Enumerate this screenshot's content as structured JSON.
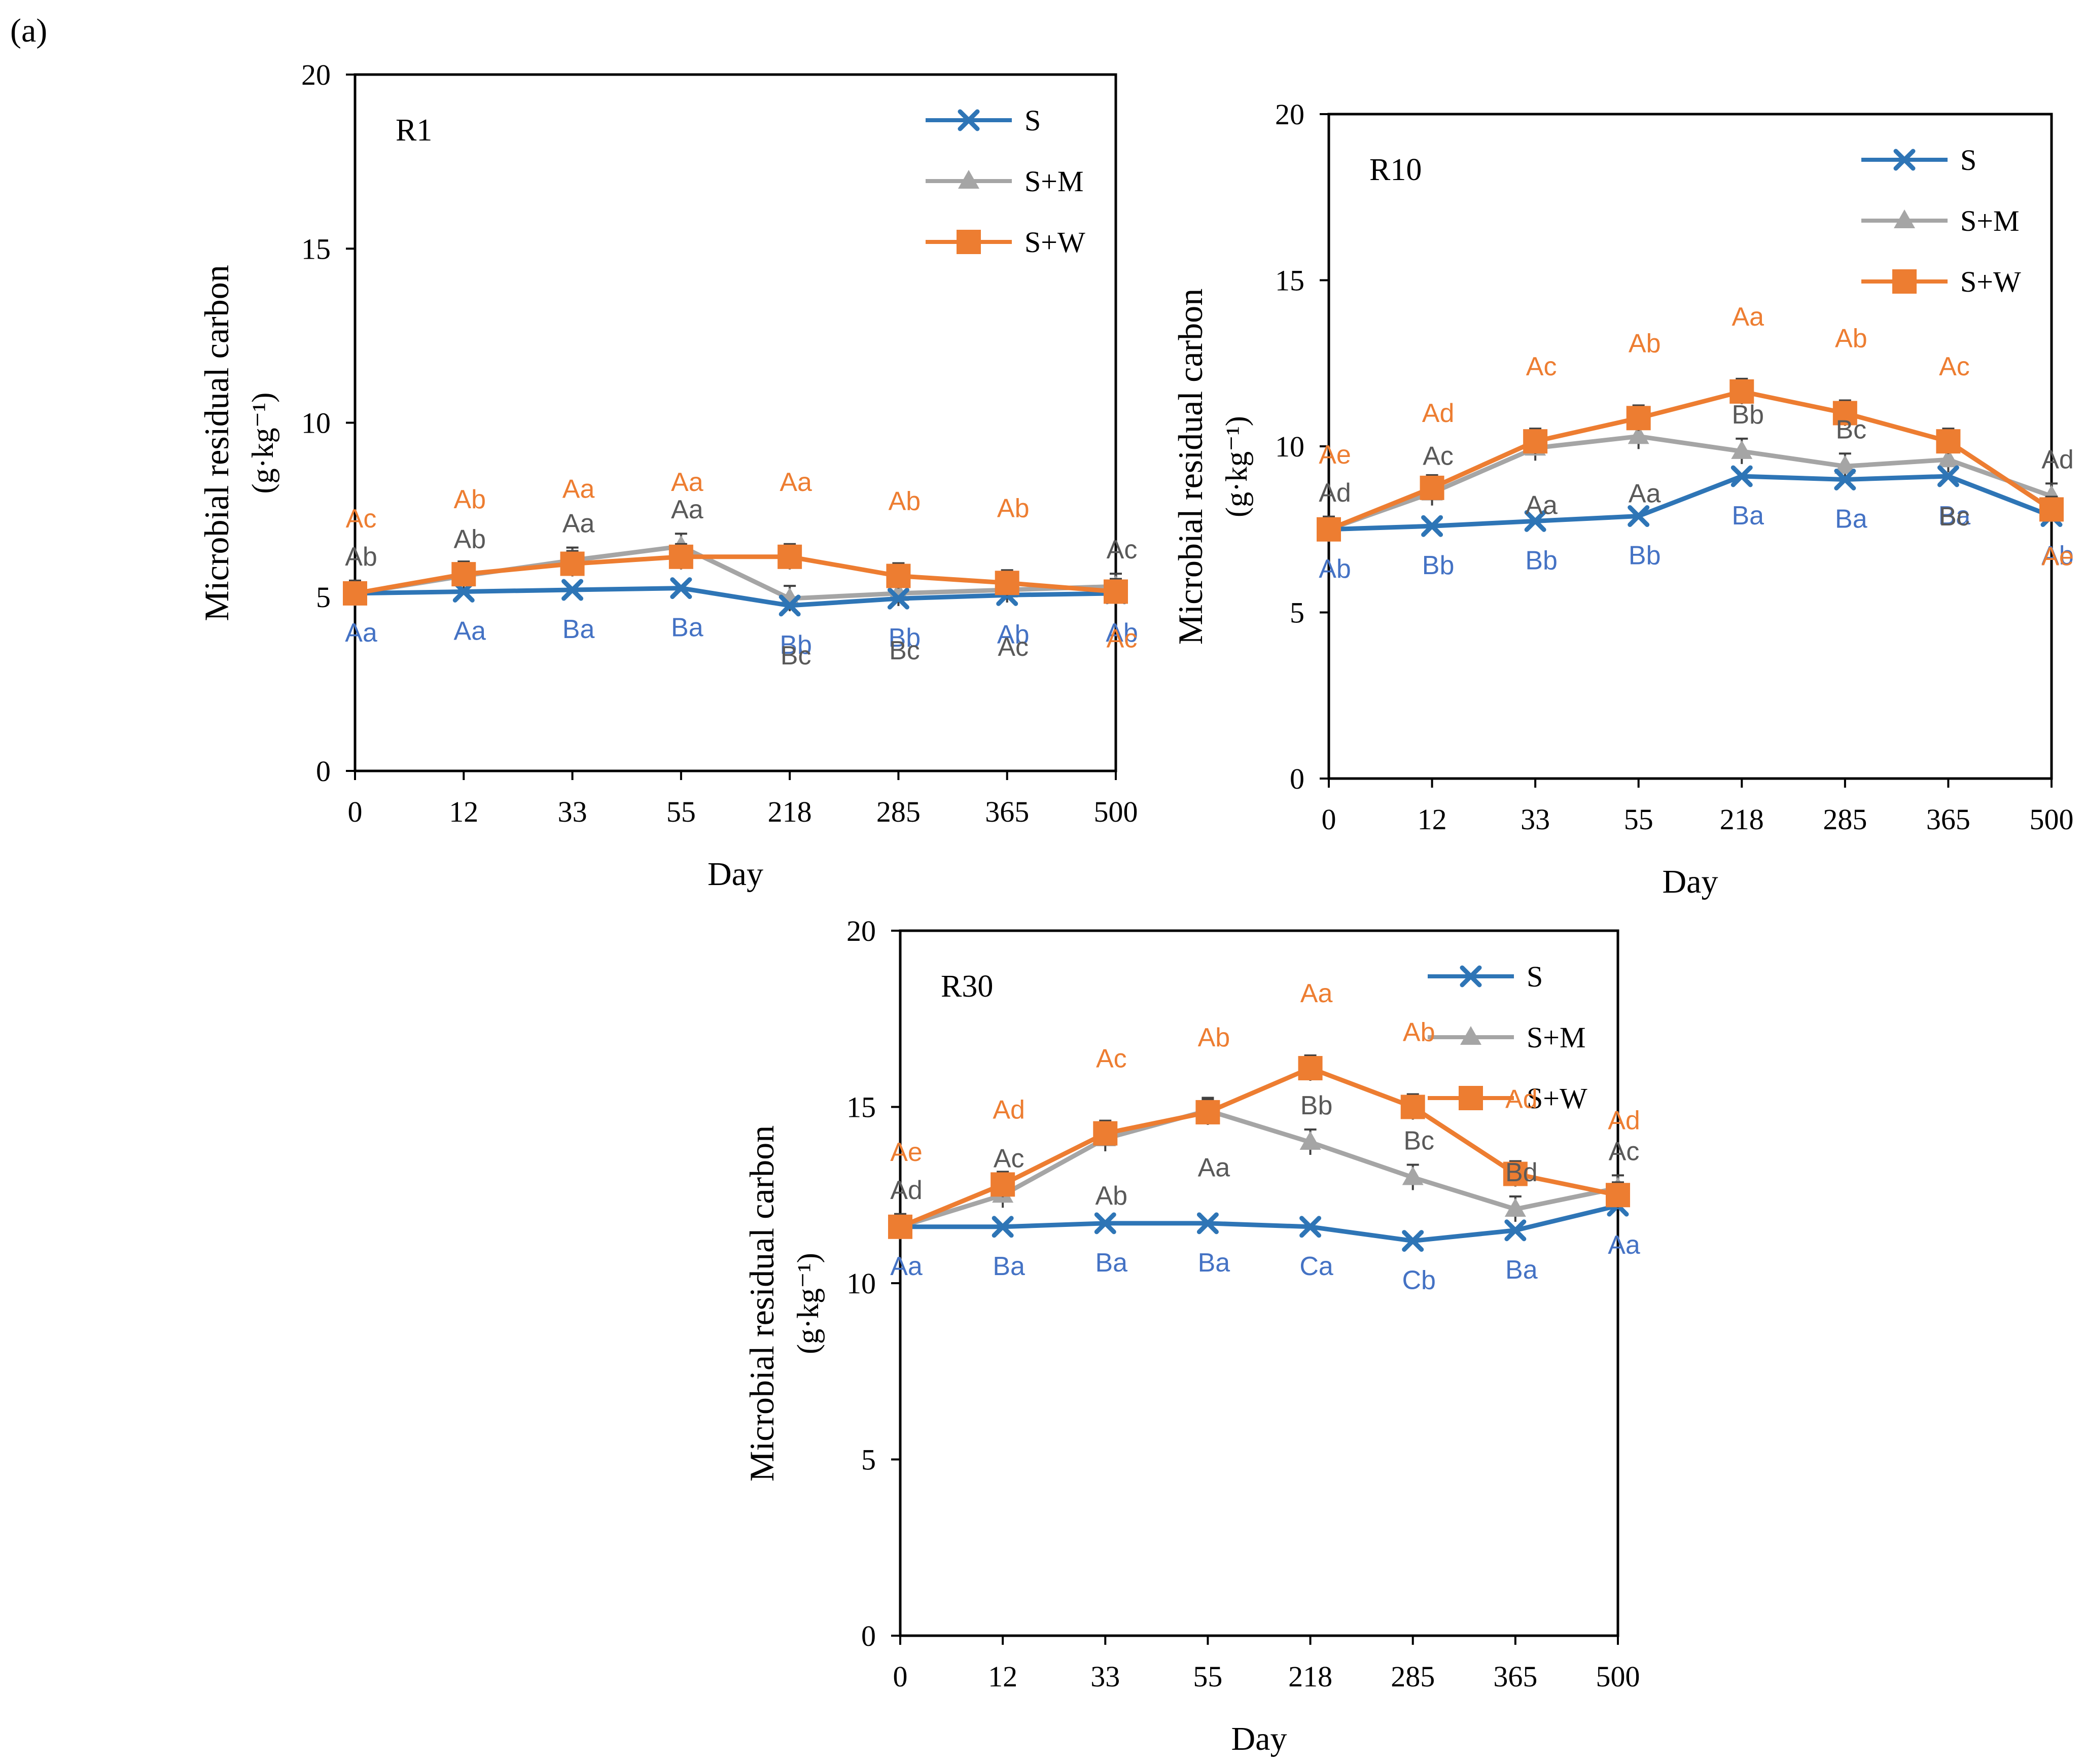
{
  "figure_label": "(a)",
  "colors": {
    "S": "#2E75B6",
    "SM": "#A5A5A5",
    "SW": "#ED7D31",
    "label_S": "#4472C4",
    "label_SM": "#595959",
    "label_SW": "#ED7D31",
    "axis": "#000000"
  },
  "chart_data": [
    {
      "type": "line",
      "panel": "R1",
      "title": "R1",
      "categories": [
        "0",
        "12",
        "33",
        "55",
        "218",
        "285",
        "365",
        "500"
      ],
      "xlabel": "Day",
      "ylabel_line1": "Microbial residual carbon",
      "ylabel_line2": "(g·kg⁻¹)",
      "ylim": [
        0,
        20
      ],
      "yticks": [
        "0",
        "5",
        "10",
        "15",
        "20"
      ],
      "legend": [
        "S",
        "S+M",
        "S+W"
      ],
      "series": [
        {
          "name": "S",
          "values": [
            5.1,
            5.15,
            5.2,
            5.25,
            4.75,
            4.95,
            5.05,
            5.1
          ],
          "labels_below": [
            "Aa",
            "Aa",
            "Ba",
            "Ba",
            "Bb",
            "Bb",
            "Ab",
            "Ab"
          ]
        },
        {
          "name": "S+M",
          "values": [
            5.1,
            5.6,
            6.05,
            6.45,
            4.95,
            5.1,
            5.2,
            5.3
          ],
          "labels_above": [
            "Ab",
            "Ab",
            "Aa",
            "Aa",
            "",
            "",
            "",
            "Ac"
          ],
          "labels_below": [
            "",
            "",
            "",
            "",
            "Bc",
            "Bc",
            "Ac",
            ""
          ]
        },
        {
          "name": "S+W",
          "values": [
            5.1,
            5.65,
            5.95,
            6.15,
            6.15,
            5.6,
            5.4,
            5.15
          ],
          "labels_above": [
            "Ac",
            "Ab",
            "Aa",
            "Aa",
            "Aa",
            "Ab",
            "Ab",
            ""
          ],
          "labels_below": [
            "",
            "",
            "",
            "",
            "",
            "",
            "",
            "Ac"
          ]
        }
      ]
    },
    {
      "type": "line",
      "panel": "R10",
      "title": "R10",
      "categories": [
        "0",
        "12",
        "33",
        "55",
        "218",
        "285",
        "365",
        "500"
      ],
      "xlabel": "Day",
      "ylabel_line1": "Microbial residual carbon",
      "ylabel_line2": "(g·kg⁻¹)",
      "ylim": [
        0,
        20
      ],
      "yticks": [
        "0",
        "5",
        "10",
        "15",
        "20"
      ],
      "legend": [
        "S",
        "S+M",
        "S+W"
      ],
      "series": [
        {
          "name": "S",
          "values": [
            7.5,
            7.6,
            7.75,
            7.9,
            9.1,
            9.0,
            9.1,
            7.9
          ],
          "labels_below": [
            "Ab",
            "Bb",
            "Bb",
            "Bb",
            "Ba",
            "Ba",
            "Ba",
            "Ab"
          ]
        },
        {
          "name": "S+M",
          "values": [
            7.5,
            8.6,
            9.95,
            10.3,
            9.85,
            9.4,
            9.6,
            8.5
          ],
          "labels_above": [
            "Ad",
            "Ac",
            "",
            "",
            "Bb",
            "Bc",
            "",
            "Ad"
          ],
          "labels_below": [
            "",
            "",
            "Aa",
            "Aa",
            "",
            "",
            "Bc",
            ""
          ]
        },
        {
          "name": "S+W",
          "values": [
            7.5,
            8.75,
            10.15,
            10.85,
            11.65,
            11.0,
            10.15,
            8.1
          ],
          "labels_above": [
            "Ae",
            "Ad",
            "Ac",
            "Ab",
            "Aa",
            "Ab",
            "Ac",
            ""
          ],
          "labels_below": [
            "",
            "",
            "",
            "",
            "",
            "",
            "",
            "Ae"
          ]
        }
      ]
    },
    {
      "type": "line",
      "panel": "R30",
      "title": "R30",
      "categories": [
        "0",
        "12",
        "33",
        "55",
        "218",
        "285",
        "365",
        "500"
      ],
      "xlabel": "Day",
      "ylabel_line1": "Microbial residual carbon",
      "ylabel_line2": "(g·kg⁻¹)",
      "ylim": [
        0,
        20
      ],
      "yticks": [
        "0",
        "5",
        "10",
        "15",
        "20"
      ],
      "legend": [
        "S",
        "S+M",
        "S+W"
      ],
      "series": [
        {
          "name": "S",
          "values": [
            11.6,
            11.6,
            11.7,
            11.7,
            11.6,
            11.2,
            11.5,
            12.2
          ],
          "labels_below": [
            "Aa",
            "Ba",
            "Ba",
            "Ba",
            "Ca",
            "Cb",
            "Ba",
            "Aa"
          ]
        },
        {
          "name": "S+M",
          "values": [
            11.6,
            12.5,
            14.1,
            14.9,
            14.0,
            13.0,
            12.1,
            12.7
          ],
          "labels_above": [
            "Ad",
            "Ac",
            "",
            "",
            "Bb",
            "Bc",
            "Bd",
            "Ac"
          ],
          "labels_below": [
            "",
            "",
            "Ab",
            "Aa",
            "",
            "",
            "",
            ""
          ]
        },
        {
          "name": "S+W",
          "values": [
            11.6,
            12.8,
            14.25,
            14.85,
            16.1,
            15.0,
            13.1,
            12.5
          ],
          "labels_above": [
            "Ae",
            "Ad",
            "Ac",
            "Ab",
            "Aa",
            "Ab",
            "Ad",
            "Ad"
          ],
          "labels_below": [
            "",
            "",
            "",
            "",
            "",
            "",
            "",
            ""
          ]
        }
      ]
    }
  ]
}
